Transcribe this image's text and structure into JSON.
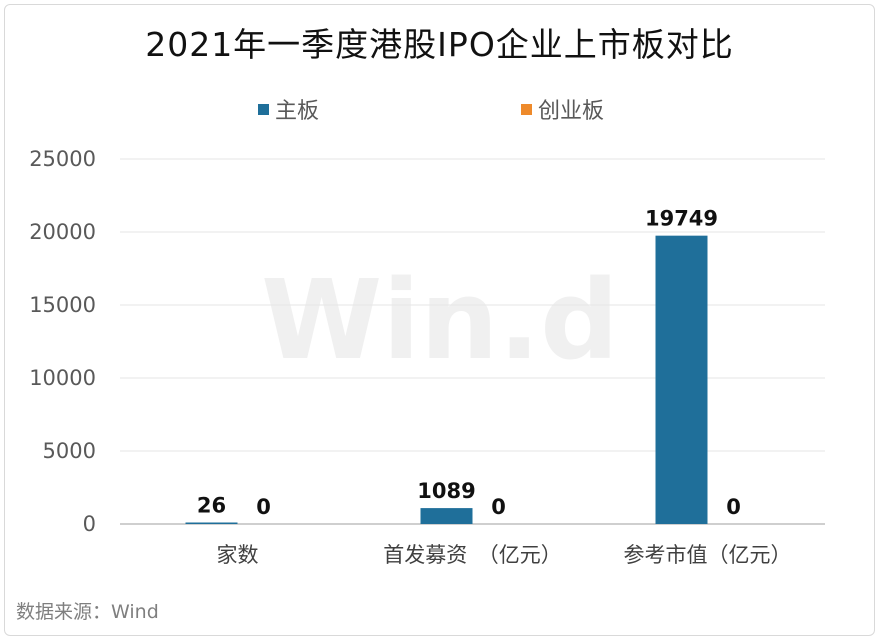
{
  "title": "2021年一季度港股IPO企业上市板对比",
  "source": "数据来源：Wind",
  "watermark": "Win.d",
  "colors": {
    "main_board": "#1f6f9a",
    "gem": "#ee8a2b",
    "grid": "#e6e6e6",
    "axis": "#bfbfbf"
  },
  "chart_data": {
    "type": "bar",
    "title": "2021年一季度港股IPO企业上市板对比",
    "categories": [
      "家数",
      "首发募资　（亿元）",
      "参考市值（亿元）"
    ],
    "series": [
      {
        "name": "主板",
        "values": [
          26,
          1089,
          19749
        ]
      },
      {
        "name": "创业板",
        "values": [
          0,
          0,
          0
        ]
      }
    ],
    "ylim": [
      0,
      25000
    ],
    "yticks": [
      "0",
      "5000",
      "10000",
      "15000",
      "20000",
      "25000"
    ],
    "data_labels": true,
    "grid": true,
    "legend": "top-center"
  }
}
